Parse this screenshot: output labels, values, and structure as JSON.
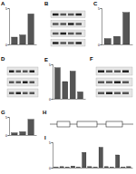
{
  "chart_data": [
    {
      "type": "bar",
      "title": "A",
      "categories": [
        null,
        null,
        null
      ],
      "values": [
        1,
        1.3,
        4.2
      ],
      "color": "#555555",
      "ylim": [
        0,
        5
      ],
      "yticks": [
        0,
        5
      ]
    },
    {
      "type": "bar",
      "title": "C",
      "categories": [
        null,
        null,
        null
      ],
      "values": [
        0.8,
        1.1,
        4.4
      ],
      "color": "#555555",
      "ylim": [
        0,
        5
      ],
      "yticks": [
        0,
        5
      ]
    },
    {
      "type": "bar",
      "title": "E",
      "categories": [
        null,
        null,
        null,
        null
      ],
      "values": [
        4.5,
        2.5,
        4,
        1
      ],
      "color": "#555555",
      "ylim": [
        0,
        5
      ],
      "yticks": [
        0,
        5
      ]
    },
    {
      "type": "bar",
      "title": "G",
      "categories": [
        null,
        null,
        null
      ],
      "values": [
        0.6,
        0.9,
        4.3
      ],
      "color": "#555555",
      "ylim": [
        0,
        5
      ],
      "yticks": [
        0,
        5
      ]
    },
    {
      "type": "bar",
      "title": "I",
      "categories": [
        null,
        null,
        null,
        null,
        null,
        null,
        null,
        null,
        null,
        null,
        null,
        null,
        null,
        null
      ],
      "values": [
        0.1,
        0.2,
        0.1,
        0.3,
        0.1,
        3,
        0.2,
        0.1,
        4,
        0.2,
        0.1,
        2.5,
        0.1,
        0.2
      ],
      "color": "#555555",
      "ylim": [
        0,
        5
      ],
      "yticks": [
        0,
        5
      ]
    }
  ],
  "panels": [
    {
      "label": "B"
    },
    {
      "label": "D"
    },
    {
      "label": "F"
    },
    {
      "label": "H"
    }
  ]
}
